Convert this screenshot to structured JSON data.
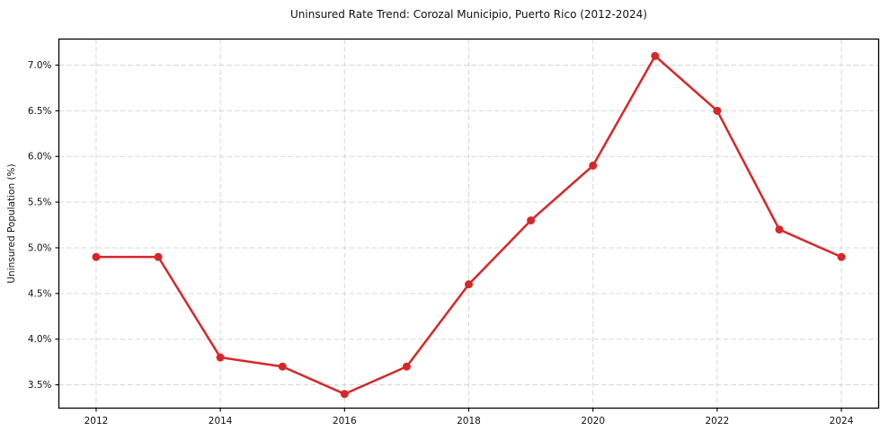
{
  "chart_data": {
    "type": "line",
    "title": "Uninsured Rate Trend: Corozal Municipio, Puerto Rico (2012-2024)",
    "xlabel": "",
    "ylabel": "Uninsured Population (%)",
    "x": [
      2012,
      2013,
      2014,
      2015,
      2016,
      2017,
      2018,
      2019,
      2020,
      2021,
      2022,
      2023,
      2024
    ],
    "values": [
      4.9,
      4.9,
      3.8,
      3.7,
      3.4,
      3.7,
      4.6,
      5.3,
      5.9,
      7.1,
      6.5,
      5.2,
      4.9
    ],
    "xticks": [
      2012,
      2014,
      2016,
      2018,
      2020,
      2022,
      2024
    ],
    "xtick_labels": [
      "2012",
      "2014",
      "2016",
      "2018",
      "2020",
      "2022",
      "2024"
    ],
    "yticks": [
      3.5,
      4.0,
      4.5,
      5.0,
      5.5,
      6.0,
      6.5,
      7.0
    ],
    "ytick_labels": [
      "3.5%",
      "4.0%",
      "4.5%",
      "5.0%",
      "5.5%",
      "6.0%",
      "6.5%",
      "7.0%"
    ],
    "xlim": [
      2011.4,
      2024.6
    ],
    "ylim": [
      3.245,
      7.285
    ],
    "grid": true,
    "legend": "none",
    "line_color": "#d62728",
    "marker": "circle",
    "background_color": "#ffffff"
  }
}
